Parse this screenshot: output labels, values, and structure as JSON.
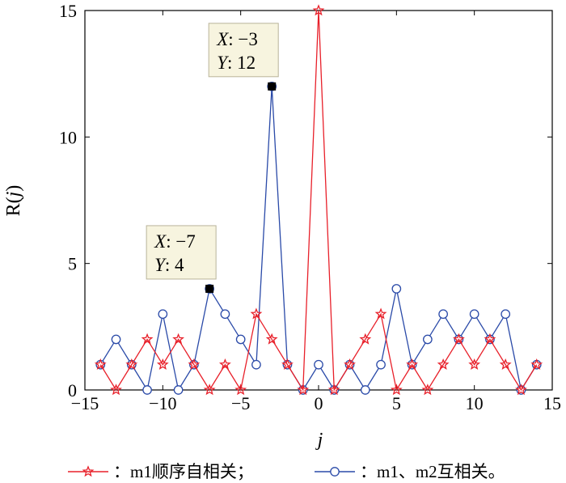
{
  "chart_data": {
    "type": "line",
    "xlabel": "j",
    "ylabel_parts": [
      "R(",
      "j",
      ")"
    ],
    "xlim": [
      -15,
      15
    ],
    "ylim": [
      0,
      15
    ],
    "xticks": [
      "−15",
      "−10",
      "−5",
      "0",
      "5",
      "10",
      "15"
    ],
    "xtick_values": [
      -15,
      -10,
      -5,
      0,
      5,
      10,
      15
    ],
    "yticks": [
      "0",
      "5",
      "10",
      "15"
    ],
    "ytick_values": [
      0,
      5,
      10,
      15
    ],
    "series": [
      {
        "label": "m1顺序自相关；",
        "color": "#e8202a",
        "marker": "star",
        "x": [
          -14,
          -13,
          -12,
          -11,
          -10,
          -9,
          -8,
          -7,
          -6,
          -5,
          -4,
          -3,
          -2,
          -1,
          0,
          1,
          2,
          3,
          4,
          5,
          6,
          7,
          8,
          9,
          10,
          11,
          12,
          13,
          14
        ],
        "y": [
          1,
          0,
          1,
          2,
          1,
          2,
          1,
          0,
          1,
          0,
          3,
          2,
          1,
          0,
          15,
          0,
          1,
          2,
          3,
          0,
          1,
          0,
          1,
          2,
          1,
          2,
          1,
          0,
          1
        ]
      },
      {
        "label": "m1、m2互相关。",
        "color": "#2a4aa8",
        "marker": "circle",
        "x": [
          -14,
          -13,
          -12,
          -11,
          -10,
          -9,
          -8,
          -7,
          -6,
          -5,
          -4,
          -3,
          -2,
          -1,
          0,
          1,
          2,
          3,
          4,
          5,
          6,
          7,
          8,
          9,
          10,
          11,
          12,
          13,
          14
        ],
        "y": [
          1,
          2,
          1,
          0,
          3,
          0,
          1,
          4,
          3,
          2,
          1,
          12,
          1,
          0,
          1,
          0,
          1,
          0,
          1,
          4,
          1,
          2,
          3,
          2,
          3,
          2,
          3,
          0,
          1
        ]
      }
    ],
    "datatips": [
      {
        "x": -3,
        "y": 12,
        "x_label": "X",
        "x_text": ": −3",
        "y_label": "Y",
        "y_text": ": 12"
      },
      {
        "x": -7,
        "y": 4,
        "x_label": "X",
        "x_text": ": −7",
        "y_label": "Y",
        "y_text": ": 4"
      }
    ],
    "legend_placement": "bottom"
  }
}
